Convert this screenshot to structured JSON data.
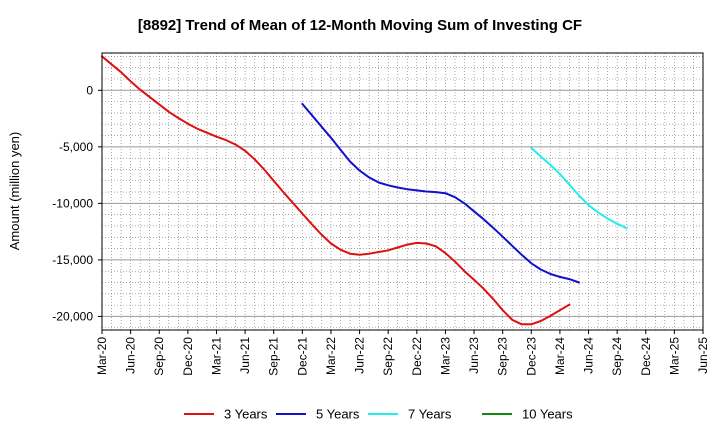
{
  "chart_data": {
    "type": "line",
    "title": "[8892]  Trend of Mean of 12-Month Moving Sum of Investing CF",
    "xlabel": "",
    "ylabel": "Amount (million yen)",
    "ylim": [
      -21200,
      3300
    ],
    "yticks": [
      0,
      -5000,
      -10000,
      -15000,
      -20000
    ],
    "ytick_labels": [
      "0",
      "-5,000",
      "-10,000",
      "-15,000",
      "-20,000"
    ],
    "x_start": "2020-03",
    "x_end": "2025-06",
    "xtick_labels": [
      "Mar-20",
      "Jun-20",
      "Sep-20",
      "Dec-20",
      "Mar-21",
      "Jun-21",
      "Sep-21",
      "Dec-21",
      "Mar-22",
      "Jun-22",
      "Sep-22",
      "Dec-22",
      "Mar-23",
      "Jun-23",
      "Sep-23",
      "Dec-23",
      "Mar-24",
      "Jun-24",
      "Sep-24",
      "Dec-24",
      "Mar-25",
      "Jun-25"
    ],
    "grid": true,
    "legend_position": "bottom",
    "series": [
      {
        "name": "3 Years",
        "color": "#dd1111",
        "start_month_index": 0,
        "values": [
          3000,
          2300,
          1600,
          800,
          50,
          -600,
          -1250,
          -1900,
          -2450,
          -2950,
          -3400,
          -3750,
          -4100,
          -4400,
          -4800,
          -5350,
          -6100,
          -7000,
          -8000,
          -9000,
          -9950,
          -10900,
          -11850,
          -12750,
          -13550,
          -14100,
          -14450,
          -14550,
          -14450,
          -14300,
          -14150,
          -13900,
          -13650,
          -13500,
          -13550,
          -13800,
          -14400,
          -15150,
          -16000,
          -16750,
          -17550,
          -18450,
          -19450,
          -20300,
          -20700,
          -20700,
          -20400,
          -19950,
          -19450,
          -18950
        ]
      },
      {
        "name": "5 Years",
        "color": "#1111cc",
        "start_month_index": 21,
        "values": [
          -1200,
          -2200,
          -3200,
          -4200,
          -5250,
          -6300,
          -7100,
          -7700,
          -8150,
          -8400,
          -8600,
          -8750,
          -8850,
          -8950,
          -9000,
          -9100,
          -9450,
          -10000,
          -10700,
          -11400,
          -12150,
          -12950,
          -13750,
          -14550,
          -15300,
          -15850,
          -16250,
          -16500,
          -16700,
          -17000
        ]
      },
      {
        "name": "7 Years",
        "color": "#22eeee",
        "start_month_index": 45,
        "values": [
          -5100,
          -5850,
          -6600,
          -7400,
          -8350,
          -9300,
          -10150,
          -10800,
          -11350,
          -11800,
          -12200
        ]
      },
      {
        "name": "10 Years",
        "color": "#118811",
        "start_month_index": 0,
        "values": []
      }
    ]
  }
}
